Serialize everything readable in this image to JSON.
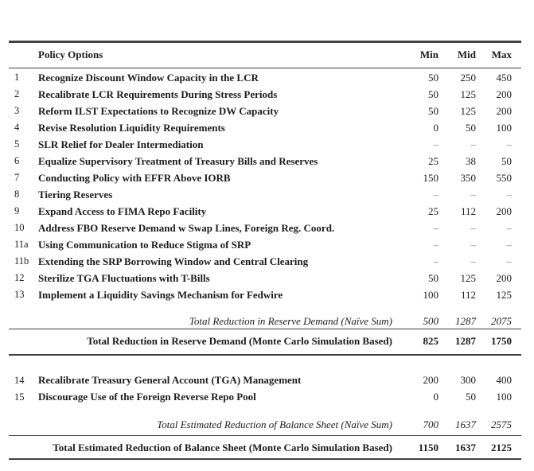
{
  "colors": {
    "rule": "#3f3f3f",
    "text": "#1c1c1c",
    "dash": "#787878",
    "background": "#ffffff"
  },
  "header": {
    "policy": "Policy Options",
    "min": "Min",
    "mid": "Mid",
    "max": "Max"
  },
  "rows": [
    {
      "num": "1",
      "label": "Recognize Discount Window Capacity in the LCR",
      "min": "50",
      "mid": "250",
      "max": "450"
    },
    {
      "num": "2",
      "label": "Recalibrate LCR Requirements During Stress Periods",
      "min": "50",
      "mid": "125",
      "max": "200"
    },
    {
      "num": "3",
      "label": "Reform ILST Expectations to Recognize DW Capacity",
      "min": "50",
      "mid": "125",
      "max": "200"
    },
    {
      "num": "4",
      "label": "Revise Resolution Liquidity Requirements",
      "min": "0",
      "mid": "50",
      "max": "100"
    },
    {
      "num": "5",
      "label": "SLR Relief for Dealer Intermediation",
      "min": "–",
      "mid": "–",
      "max": "–"
    },
    {
      "num": "6",
      "label": "Equalize Supervisory Treatment of Treasury Bills and Reserves",
      "min": "25",
      "mid": "38",
      "max": "50"
    },
    {
      "num": "7",
      "label": "Conducting Policy with EFFR Above IORB",
      "min": "150",
      "mid": "350",
      "max": "550"
    },
    {
      "num": "8",
      "label": "Tiering Reserves",
      "min": "–",
      "mid": "–",
      "max": "–"
    },
    {
      "num": "9",
      "label": "Expand Access to FIMA Repo Facility",
      "min": "25",
      "mid": "112",
      "max": "200"
    },
    {
      "num": "10",
      "label": "Address FBO Reserve Demand w Swap Lines, Foreign Reg. Coord.",
      "min": "–",
      "mid": "–",
      "max": "–"
    },
    {
      "num": "11a",
      "label": "Using Communication to Reduce Stigma of SRP",
      "min": "–",
      "mid": "–",
      "max": "–"
    },
    {
      "num": "11b",
      "label": "Extending the SRP Borrowing Window and Central Clearing",
      "min": "–",
      "mid": "–",
      "max": "–"
    },
    {
      "num": "12",
      "label": "Sterilize TGA Fluctuations with T-Bills",
      "min": "50",
      "mid": "125",
      "max": "200"
    },
    {
      "num": "13",
      "label": "Implement a Liquidity Savings Mechanism for Fedwire",
      "min": "100",
      "mid": "112",
      "max": "125"
    }
  ],
  "reserve_demand_totals": {
    "naive": {
      "label": "Total Reduction in Reserve Demand (Naïve Sum)",
      "min": "500",
      "mid": "1287",
      "max": "2075"
    },
    "monte_carlo": {
      "label": "Total Reduction in Reserve Demand (Monte Carlo Simulation Based)",
      "min": "825",
      "mid": "1287",
      "max": "1750"
    }
  },
  "balance_sheet_rows": [
    {
      "num": "14",
      "label": "Recalibrate Treasury General Account (TGA) Management",
      "min": "200",
      "mid": "300",
      "max": "400"
    },
    {
      "num": "15",
      "label": "Discourage Use of the Foreign Reverse Repo Pool",
      "min": "0",
      "mid": "50",
      "max": "100"
    }
  ],
  "balance_sheet_totals": {
    "naive": {
      "label": "Total Estimated Reduction of Balance Sheet (Naïve Sum)",
      "min": "700",
      "mid": "1637",
      "max": "2575"
    },
    "monte_carlo": {
      "label": "Total Estimated Reduction of Balance Sheet (Monte Carlo Simulation Based)",
      "min": "1150",
      "mid": "1637",
      "max": "2125"
    }
  }
}
